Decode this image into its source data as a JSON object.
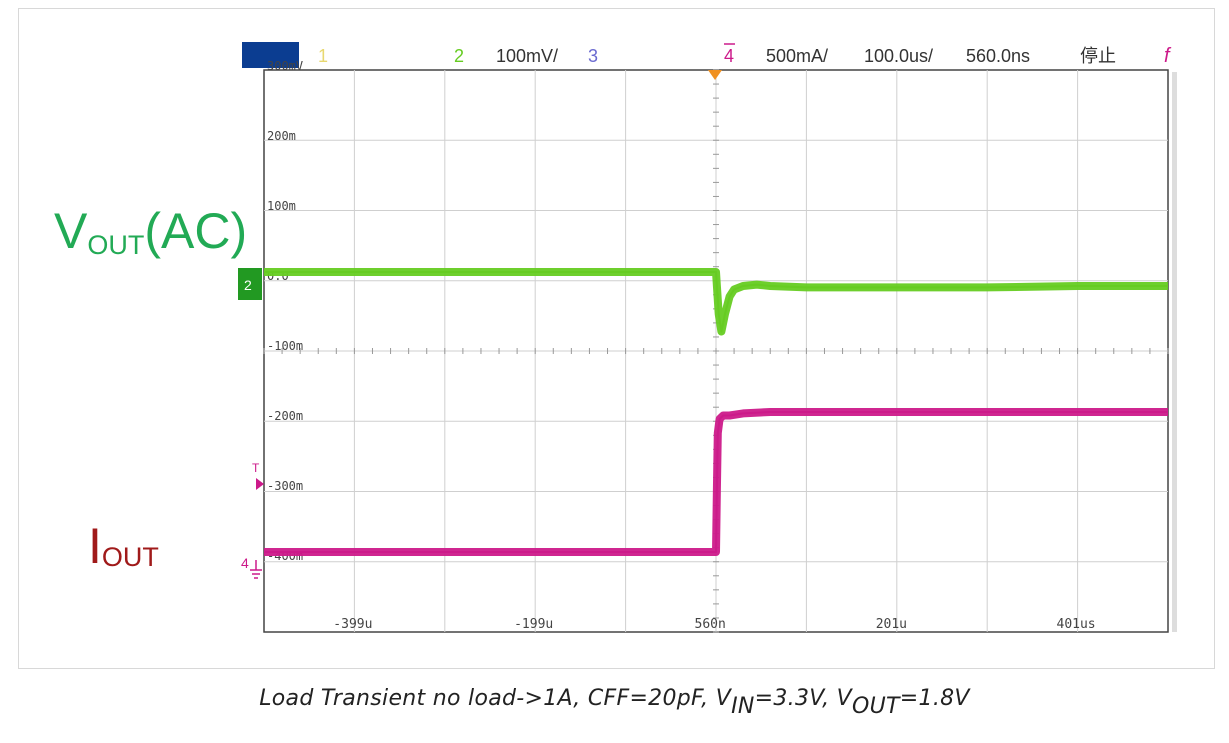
{
  "header": {
    "ch1": "1",
    "ch2": "2",
    "ch2_scale": "100mV/",
    "ch3": "3",
    "ch4": "4",
    "ch4_scale": "500mA/",
    "timebase": "100.0us/",
    "delay": "560.0ns",
    "status": "停止",
    "trigger_glyph": "f"
  },
  "colors": {
    "ch1": "#f0e060",
    "ch2": "#66cc22",
    "ch3": "#6a6ad0",
    "ch4": "#cc1a8a",
    "vout_label": "#22aa55",
    "iout_label": "#a01a1a",
    "trigger_marker": "#f09020"
  },
  "labels": {
    "vout_main": "V",
    "vout_sub": "OUT",
    "vout_suffix": "(AC)",
    "iout_main": "I",
    "iout_sub": "OUT"
  },
  "caption": {
    "text": "Load Transient no load->1A, CFF=20pF,  V",
    "vin_sub": "IN",
    "vin_val": "=3.3V, V",
    "vout_sub": "OUT",
    "vout_val": "=1.8V"
  },
  "chart_data": {
    "type": "line",
    "y_tick_labels": [
      "300mV",
      "200m",
      "100m",
      "0.0",
      "-100m",
      "-200m",
      "-300m",
      "-400m"
    ],
    "y_tick_values": [
      300,
      200,
      100,
      0,
      -100,
      -200,
      -300,
      -400
    ],
    "x_tick_labels": [
      "-399u",
      "-199u",
      "560n",
      "201u",
      "401us"
    ],
    "x_tick_values": [
      -399,
      -199,
      0.56,
      201,
      401
    ],
    "xlim": [
      -500,
      500
    ],
    "ylim": [
      -450,
      300
    ],
    "grid": true,
    "series": [
      {
        "channel": "2",
        "x": [
          -500,
          0,
          1,
          3,
          6,
          10,
          15,
          20,
          30,
          45,
          60,
          100,
          200,
          300,
          400,
          500
        ],
        "y": [
          0,
          0,
          -20,
          -60,
          -85,
          -60,
          -35,
          -25,
          -20,
          -18,
          -20,
          -22,
          -22,
          -22,
          -20,
          -20
        ]
      },
      {
        "channel": "4",
        "x": [
          -500,
          0,
          1,
          2,
          4,
          8,
          15,
          30,
          60,
          100,
          200,
          300,
          400,
          500
        ],
        "y": [
          -400,
          -400,
          -310,
          -230,
          -210,
          -205,
          -205,
          -202,
          -200,
          -200,
          -200,
          -200,
          -200,
          -200
        ]
      }
    ]
  }
}
